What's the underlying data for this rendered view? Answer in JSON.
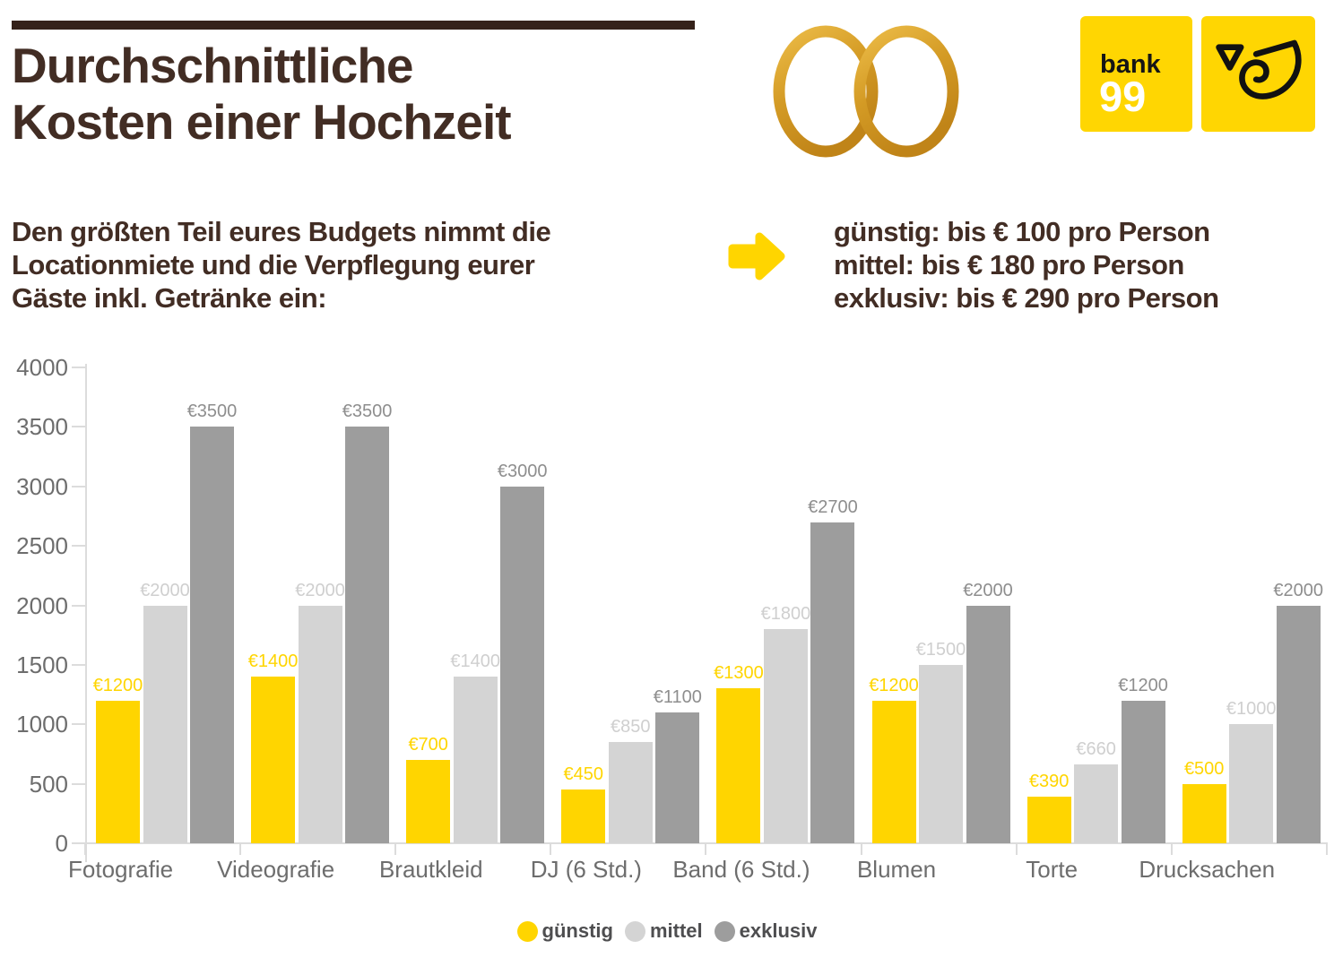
{
  "header": {
    "title_line1": "Durchschnittliche",
    "title_line2": "Kosten einer Hochzeit",
    "subtitle_lines": [
      "Den größten Teil eures Budgets nimmt die",
      "Locationmiete und die Verpflegung eurer",
      "Gäste inkl. Getränke ein:"
    ],
    "price_lines": [
      "günstig: bis € 100 pro Person",
      "mittel: bis € 180 pro Person",
      "exklusiv: bis € 290 pro Person"
    ]
  },
  "logos": {
    "bank99_line1": "bank",
    "bank99_line2": "99",
    "bank99_bg": "#ffd602",
    "post_bg": "#ffd602"
  },
  "colors": {
    "brown_text": "#422d24",
    "rule": "#35221a",
    "yellow": "#ffd500",
    "light_gray": "#d4d4d4",
    "dark_gray": "#9d9d9d",
    "axis_line": "#dcdcdc",
    "axis_text": "#6d6d6d",
    "ring_gold": "#d49b25"
  },
  "chart_data": {
    "type": "bar",
    "title": "",
    "xlabel": "",
    "ylabel": "",
    "categories": [
      "Fotografie",
      "Videografie",
      "Brautkleid",
      "DJ (6 Std.)",
      "Band (6 Std.)",
      "Blumen",
      "Torte",
      "Drucksachen"
    ],
    "series": [
      {
        "name": "günstig",
        "key": "guenstig",
        "color": "#ffd500",
        "label_color": "#ffd500",
        "values": [
          1200,
          1400,
          700,
          450,
          1300,
          1200,
          390,
          500
        ]
      },
      {
        "name": "mittel",
        "key": "mittel",
        "color": "#d4d4d4",
        "label_color": "#cfcfcf",
        "values": [
          2000,
          2000,
          1400,
          850,
          1800,
          1500,
          660,
          1000
        ]
      },
      {
        "name": "exklusiv",
        "key": "exklusiv",
        "color": "#9d9d9d",
        "label_color": "#8e8e8e",
        "values": [
          3500,
          3500,
          3000,
          1100,
          2700,
          2000,
          1200,
          2000
        ]
      }
    ],
    "value_prefix": "€",
    "ylim": [
      0,
      4000
    ],
    "yticks": [
      0,
      500,
      1000,
      1500,
      2000,
      2500,
      3000,
      3500,
      4000
    ],
    "grid": false,
    "legend_position": "bottom"
  }
}
